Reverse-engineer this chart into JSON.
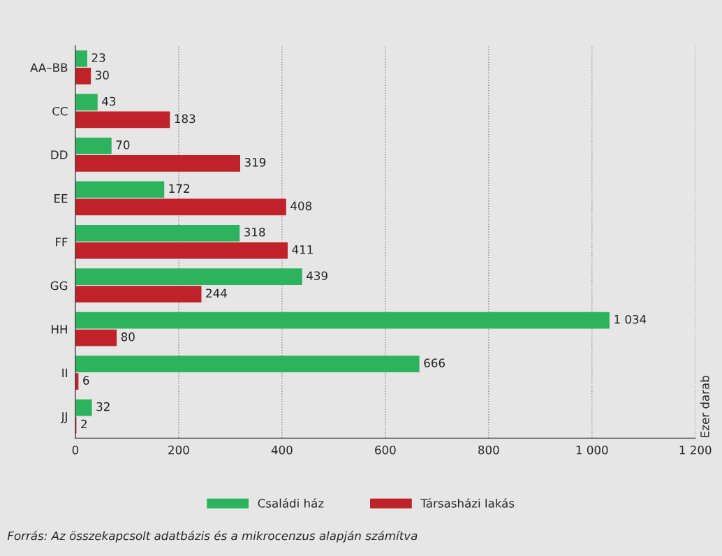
{
  "chart_data": {
    "type": "bar",
    "orientation": "horizontal",
    "categories": [
      "AA–BB",
      "CC",
      "DD",
      "EE",
      "FF",
      "GG",
      "HH",
      "II",
      "JJ"
    ],
    "series": [
      {
        "name": "Családi ház",
        "color": "#2db35d",
        "values": [
          23,
          43,
          70,
          172,
          318,
          439,
          1034,
          666,
          32
        ],
        "value_labels": [
          "23",
          "43",
          "70",
          "172",
          "318",
          "439",
          "1 034",
          "666",
          "32"
        ]
      },
      {
        "name": "Társasházi lakás",
        "color": "#c0222a",
        "values": [
          30,
          183,
          319,
          408,
          411,
          244,
          80,
          6,
          2
        ],
        "value_labels": [
          "30",
          "183",
          "319",
          "408",
          "411",
          "244",
          "80",
          "6",
          "2"
        ]
      }
    ],
    "xlim": [
      0,
      1200
    ],
    "xticks": [
      0,
      200,
      400,
      600,
      800,
      {
        "value": 1000,
        "label": "1 000"
      },
      {
        "value": 1200,
        "label": "1 200"
      }
    ],
    "grid": "x",
    "legend": "bottom",
    "annotations": [
      "Ezer darab",
      "Forrás: Az összekapcsolt adatbázis és a mikrocenzus alapján számítva"
    ]
  }
}
